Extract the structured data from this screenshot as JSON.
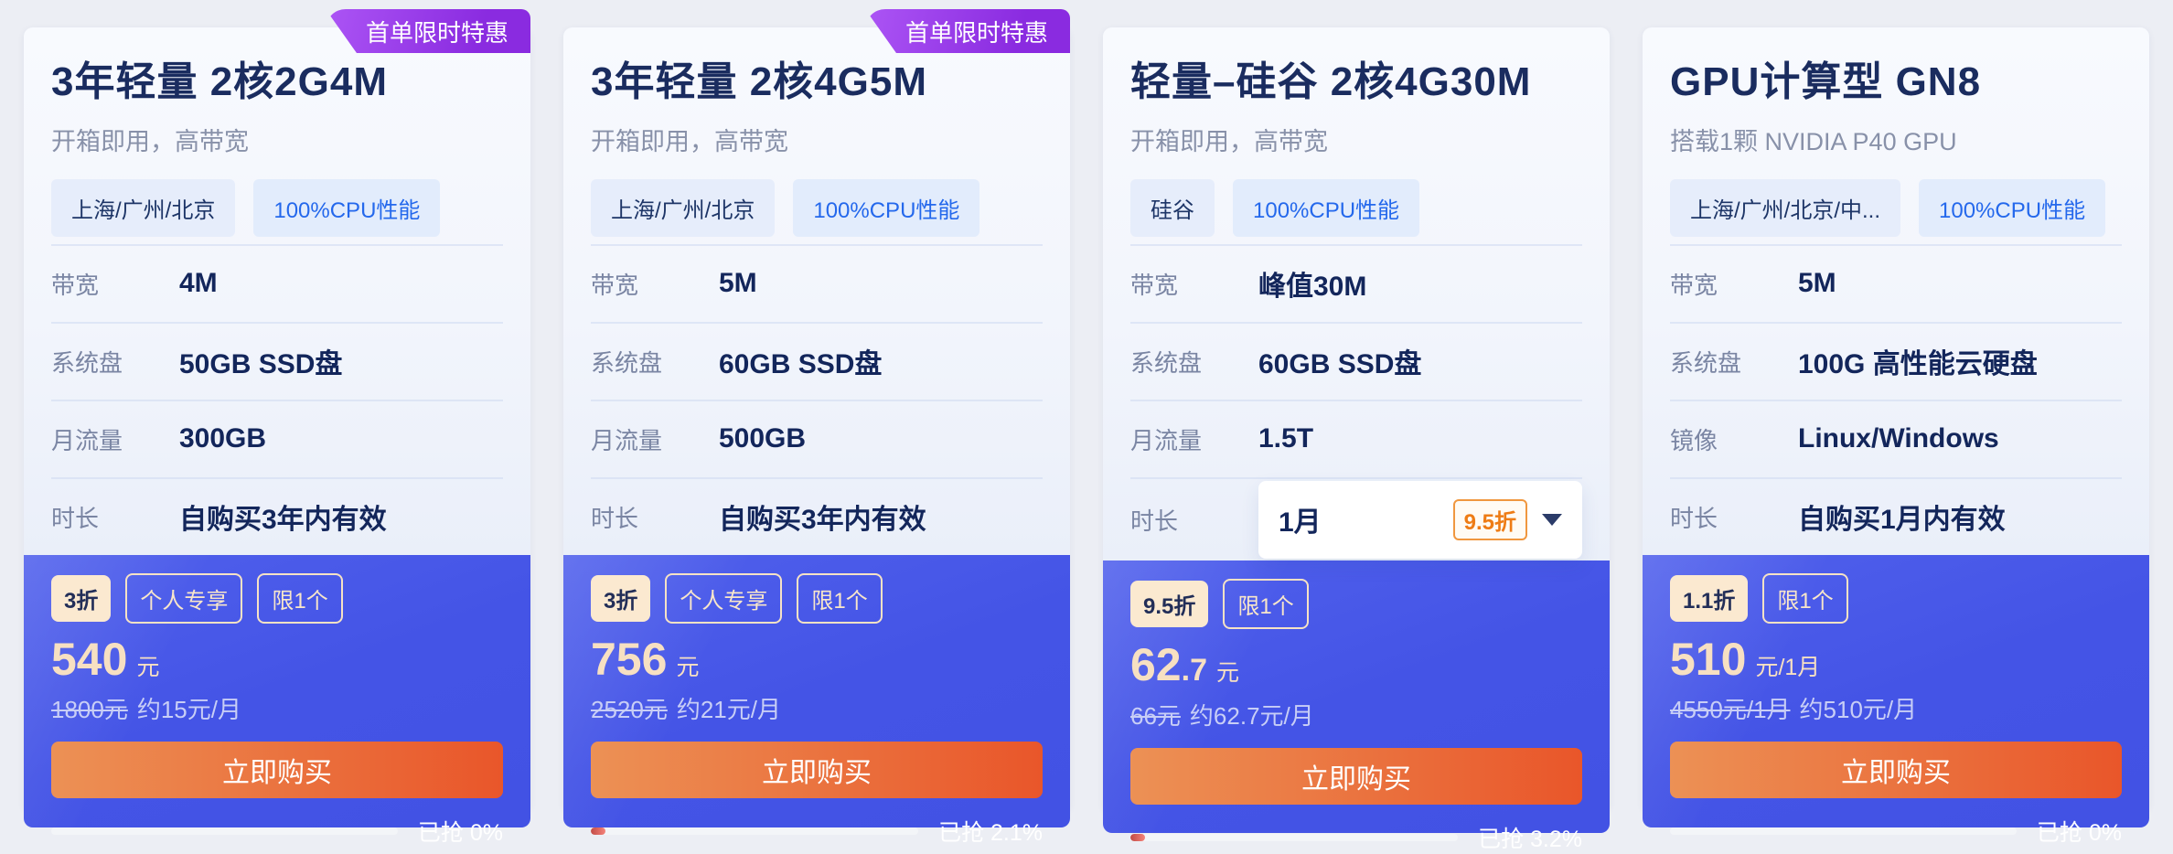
{
  "colors": {
    "page_bg": "#ECEEF4",
    "ribbon_purple": "#8A2BE0",
    "panel_blue": "#4454E6",
    "button_orange_start": "#EC9155",
    "button_orange_end": "#E9562A",
    "price_cream": "#F7E0C2",
    "cpu_tag_blue": "#2468EC",
    "discount_orange": "#EE7C15",
    "title_navy": "#1A2C5F"
  },
  "cards": [
    {
      "ribbon": "首单限时特惠",
      "title": "3年轻量 2核2G4M",
      "subtitle": "开箱即用，高带宽",
      "tags": [
        {
          "label": "上海/广州/北京",
          "type": "region"
        },
        {
          "label": "100%CPU性能",
          "type": "cpu"
        }
      ],
      "specs": [
        {
          "label": "带宽",
          "value": "4M"
        },
        {
          "label": "系统盘",
          "value": "50GB SSD盘"
        },
        {
          "label": "月流量",
          "value": "300GB"
        },
        {
          "label": "时长",
          "value": "自购买3年内有效"
        }
      ],
      "promo": {
        "badges": [
          {
            "label": "3折",
            "style": "solid"
          },
          {
            "label": "个人专享",
            "style": "outline"
          },
          {
            "label": "限1个",
            "style": "outline"
          }
        ],
        "price": {
          "integer": "540",
          "decimal": "",
          "unit": "元"
        },
        "original": "1800元",
        "approx": "约15元/月",
        "buy_label": "立即购买",
        "sold_label": "已抢 0%",
        "sold_pct": 0
      }
    },
    {
      "ribbon": "首单限时特惠",
      "title": "3年轻量 2核4G5M",
      "subtitle": "开箱即用，高带宽",
      "tags": [
        {
          "label": "上海/广州/北京",
          "type": "region"
        },
        {
          "label": "100%CPU性能",
          "type": "cpu"
        }
      ],
      "specs": [
        {
          "label": "带宽",
          "value": "5M"
        },
        {
          "label": "系统盘",
          "value": "60GB SSD盘"
        },
        {
          "label": "月流量",
          "value": "500GB"
        },
        {
          "label": "时长",
          "value": "自购买3年内有效"
        }
      ],
      "promo": {
        "badges": [
          {
            "label": "3折",
            "style": "solid"
          },
          {
            "label": "个人专享",
            "style": "outline"
          },
          {
            "label": "限1个",
            "style": "outline"
          }
        ],
        "price": {
          "integer": "756",
          "decimal": "",
          "unit": "元"
        },
        "original": "2520元",
        "approx": "约21元/月",
        "buy_label": "立即购买",
        "sold_label": "已抢 2.1%",
        "sold_pct": 2.1
      }
    },
    {
      "ribbon": null,
      "title": "轻量–硅谷 2核4G30M",
      "subtitle": "开箱即用，高带宽",
      "tags": [
        {
          "label": "硅谷",
          "type": "region"
        },
        {
          "label": "100%CPU性能",
          "type": "cpu"
        }
      ],
      "specs": [
        {
          "label": "带宽",
          "value": "峰值30M"
        },
        {
          "label": "系统盘",
          "value": "60GB SSD盘"
        },
        {
          "label": "月流量",
          "value": "1.5T"
        },
        {
          "label": "时长",
          "dropdown": {
            "value": "1月",
            "discount": "9.5折"
          }
        }
      ],
      "promo": {
        "badges": [
          {
            "label": "9.5折",
            "style": "solid"
          },
          {
            "label": "限1个",
            "style": "outline"
          }
        ],
        "price": {
          "integer": "62",
          "decimal": ".7",
          "unit": "元"
        },
        "original": "66元",
        "approx": "约62.7元/月",
        "buy_label": "立即购买",
        "sold_label": "已抢 3.2%",
        "sold_pct": 3.2
      }
    },
    {
      "ribbon": null,
      "title": "GPU计算型 GN8",
      "subtitle": "搭载1颗 NVIDIA P40 GPU",
      "tags": [
        {
          "label": "上海/广州/北京/中...",
          "type": "region"
        },
        {
          "label": "100%CPU性能",
          "type": "cpu"
        }
      ],
      "specs": [
        {
          "label": "带宽",
          "value": "5M"
        },
        {
          "label": "系统盘",
          "value": "100G 高性能云硬盘"
        },
        {
          "label": "镜像",
          "value": "Linux/Windows"
        },
        {
          "label": "时长",
          "value": "自购买1月内有效"
        }
      ],
      "promo": {
        "badges": [
          {
            "label": "1.1折",
            "style": "solid"
          },
          {
            "label": "限1个",
            "style": "outline"
          }
        ],
        "price": {
          "integer": "510",
          "decimal": "",
          "unit": "元/1月"
        },
        "original": "4550元/1月",
        "approx": "约510元/月",
        "buy_label": "立即购买",
        "sold_label": "已抢 0%",
        "sold_pct": 0
      }
    }
  ]
}
